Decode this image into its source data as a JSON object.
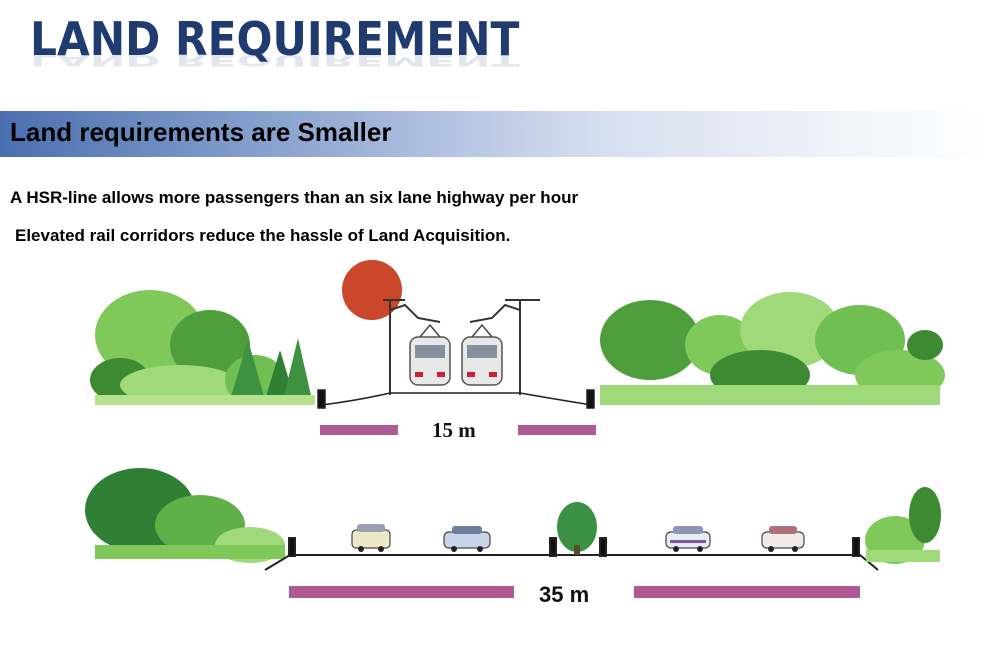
{
  "slide": {
    "title": "LAND REQUIREMENT",
    "subtitle": "Land requirements are Smaller",
    "bullets": [
      "A HSR-line allows more passengers than an six lane highway per hour",
      " Elevated rail corridors reduce the hassle of Land Acquisition."
    ]
  },
  "illustration": {
    "rail_width_label": "15 m",
    "highway_width_label": "35 m"
  },
  "colors": {
    "title": "#1f3b70",
    "banner_start": "#4a6fb0",
    "measure_bar": "#b05a95",
    "foliage_dark": "#2f8a3c",
    "foliage_light": "#8fd46a",
    "sun": "#c0392b"
  }
}
